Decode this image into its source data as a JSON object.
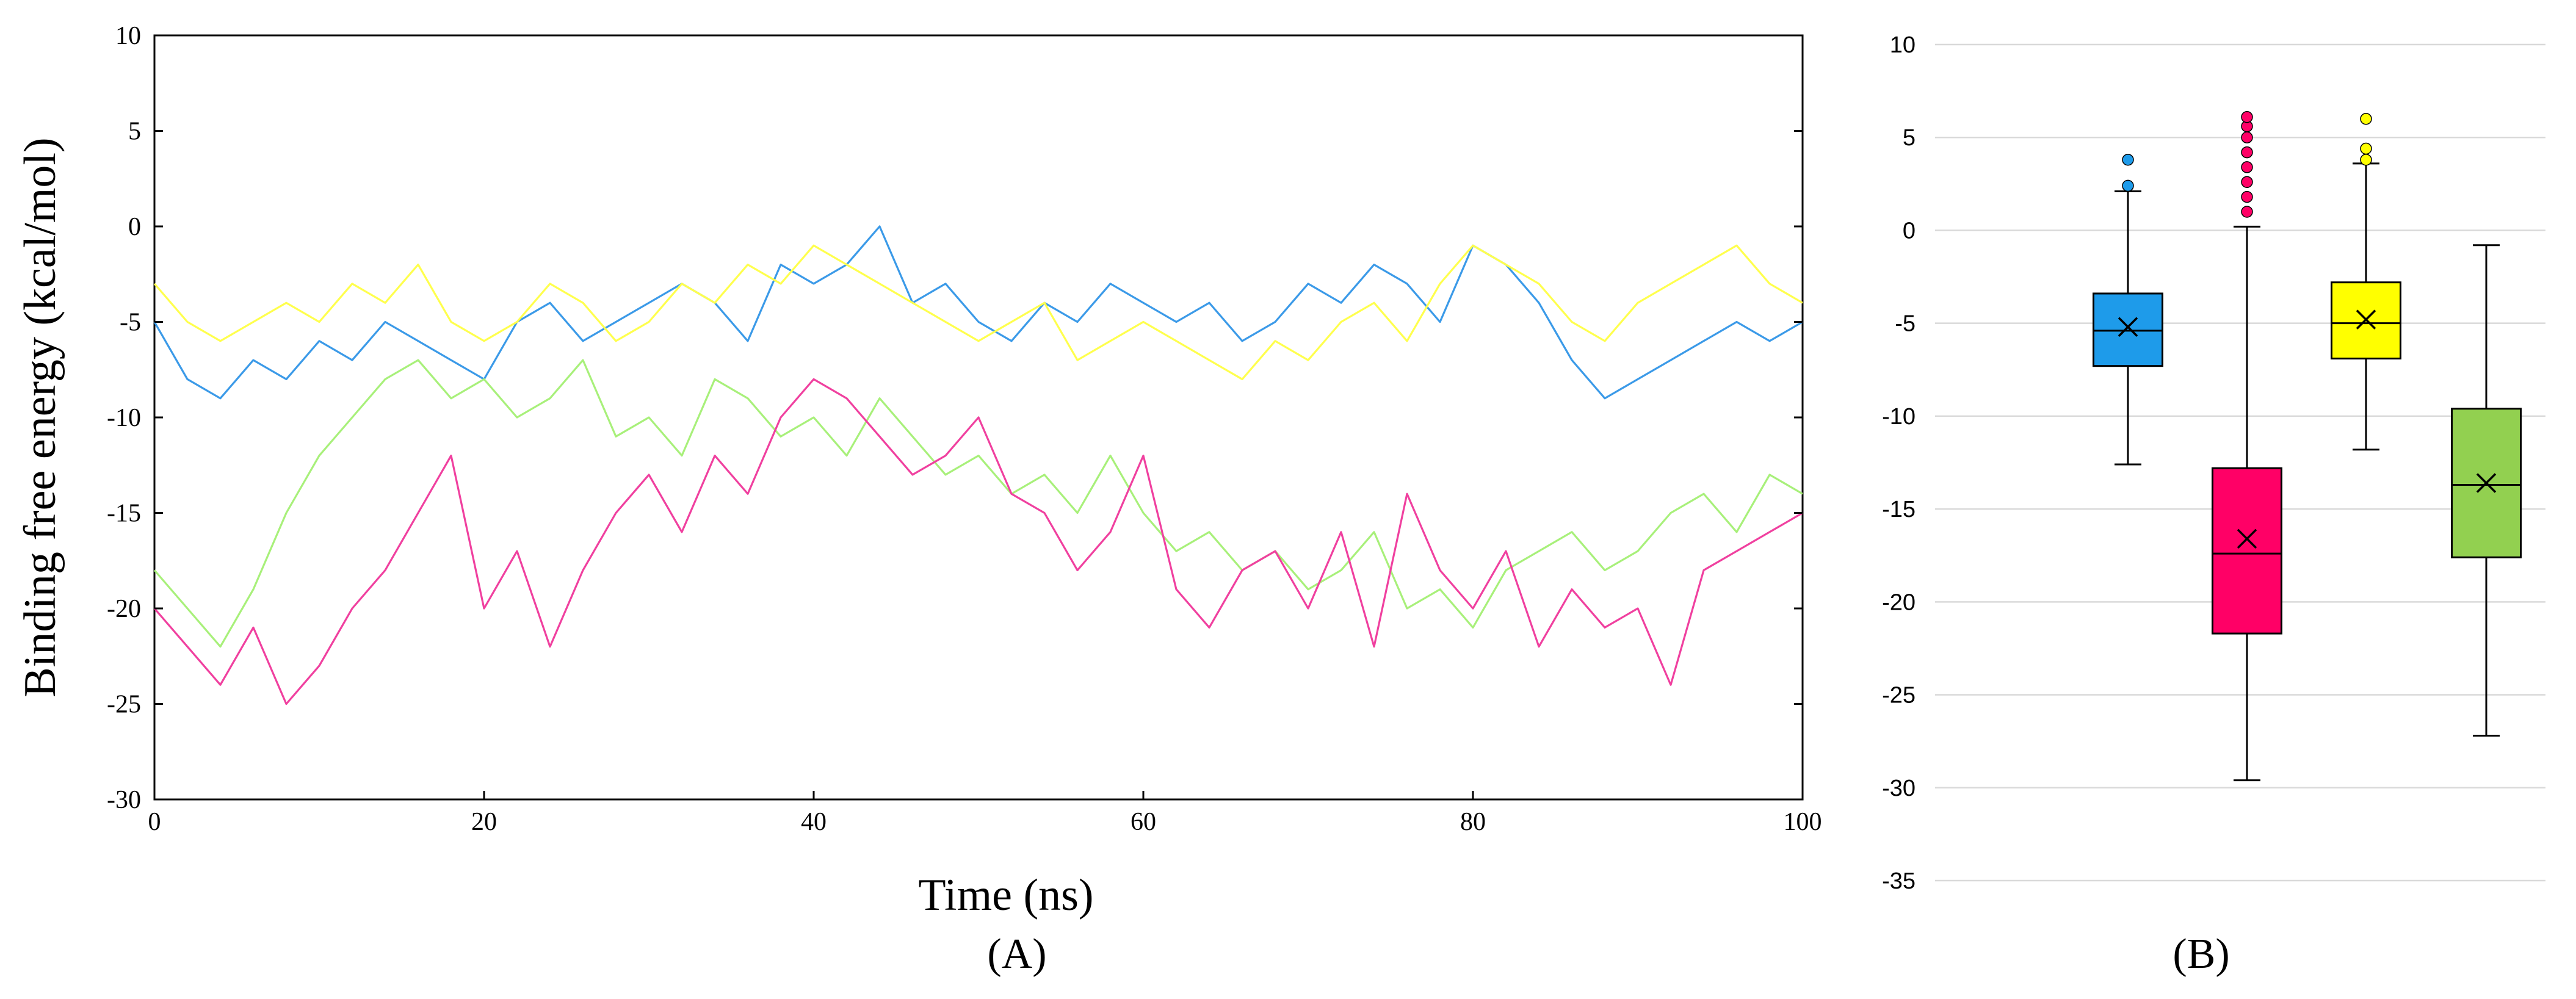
{
  "chart_data": [
    {
      "type": "line",
      "panel_label": "(A)",
      "xlabel": "Time (ns)",
      "ylabel": "Binding free energy (kcal/mol)",
      "xlim": [
        0,
        100
      ],
      "ylim": [
        -30,
        10
      ],
      "x_ticks": [
        "0",
        "20",
        "40",
        "60",
        "80",
        "100"
      ],
      "y_ticks": [
        "10",
        "5",
        "0",
        "-5",
        "-10",
        "-15",
        "-20",
        "-25",
        "-30"
      ],
      "grid": false,
      "legend": "none",
      "series": [
        {
          "color": "#3b9ae8",
          "x": [
            0,
            2,
            4,
            6,
            8,
            10,
            12,
            14,
            16,
            18,
            20,
            22,
            24,
            26,
            28,
            30,
            32,
            34,
            36,
            38,
            40,
            42,
            44,
            46,
            48,
            50,
            52,
            54,
            56,
            58,
            60,
            62,
            64,
            66,
            68,
            70,
            72,
            74,
            76,
            78,
            80,
            82,
            84,
            86,
            88,
            90,
            92,
            94,
            96,
            98,
            100
          ],
          "values": [
            -5,
            -8,
            -9,
            -7,
            -8,
            -6,
            -7,
            -5,
            -6,
            -7,
            -8,
            -5,
            -4,
            -6,
            -5,
            -4,
            -3,
            -4,
            -6,
            -2,
            -3,
            -2,
            0,
            -4,
            -3,
            -5,
            -6,
            -4,
            -5,
            -3,
            -4,
            -5,
            -4,
            -6,
            -5,
            -3,
            -4,
            -2,
            -3,
            -5,
            -1,
            -2,
            -4,
            -7,
            -9,
            -8,
            -7,
            -6,
            -5,
            -6,
            -5
          ]
        },
        {
          "color": "#ffff4d",
          "x": [
            0,
            2,
            4,
            6,
            8,
            10,
            12,
            14,
            16,
            18,
            20,
            22,
            24,
            26,
            28,
            30,
            32,
            34,
            36,
            38,
            40,
            42,
            44,
            46,
            48,
            50,
            52,
            54,
            56,
            58,
            60,
            62,
            64,
            66,
            68,
            70,
            72,
            74,
            76,
            78,
            80,
            82,
            84,
            86,
            88,
            90,
            92,
            94,
            96,
            98,
            100
          ],
          "values": [
            -3,
            -5,
            -6,
            -5,
            -4,
            -5,
            -3,
            -4,
            -2,
            -5,
            -6,
            -5,
            -3,
            -4,
            -6,
            -5,
            -3,
            -4,
            -2,
            -3,
            -1,
            -2,
            -3,
            -4,
            -5,
            -6,
            -5,
            -4,
            -7,
            -6,
            -5,
            -6,
            -7,
            -8,
            -6,
            -7,
            -5,
            -4,
            -6,
            -3,
            -1,
            -2,
            -3,
            -5,
            -6,
            -4,
            -3,
            -2,
            -1,
            -3,
            -4
          ]
        },
        {
          "color": "#a8f07a",
          "x": [
            0,
            2,
            4,
            6,
            8,
            10,
            12,
            14,
            16,
            18,
            20,
            22,
            24,
            26,
            28,
            30,
            32,
            34,
            36,
            38,
            40,
            42,
            44,
            46,
            48,
            50,
            52,
            54,
            56,
            58,
            60,
            62,
            64,
            66,
            68,
            70,
            72,
            74,
            76,
            78,
            80,
            82,
            84,
            86,
            88,
            90,
            92,
            94,
            96,
            98,
            100
          ],
          "values": [
            -18,
            -20,
            -22,
            -19,
            -15,
            -12,
            -10,
            -8,
            -7,
            -9,
            -8,
            -10,
            -9,
            -7,
            -11,
            -10,
            -12,
            -8,
            -9,
            -11,
            -10,
            -12,
            -9,
            -11,
            -13,
            -12,
            -14,
            -13,
            -15,
            -12,
            -15,
            -17,
            -16,
            -18,
            -17,
            -19,
            -18,
            -16,
            -20,
            -19,
            -21,
            -18,
            -17,
            -16,
            -18,
            -17,
            -15,
            -14,
            -16,
            -13,
            -14
          ]
        },
        {
          "color": "#f0409f",
          "x": [
            0,
            2,
            4,
            6,
            8,
            10,
            12,
            14,
            16,
            18,
            20,
            22,
            24,
            26,
            28,
            30,
            32,
            34,
            36,
            38,
            40,
            42,
            44,
            46,
            48,
            50,
            52,
            54,
            56,
            58,
            60,
            62,
            64,
            66,
            68,
            70,
            72,
            74,
            76,
            78,
            80,
            82,
            84,
            86,
            88,
            90,
            92,
            94,
            96,
            98,
            100
          ],
          "values": [
            -20,
            -22,
            -24,
            -21,
            -25,
            -23,
            -20,
            -18,
            -15,
            -12,
            -20,
            -17,
            -22,
            -18,
            -15,
            -13,
            -16,
            -12,
            -14,
            -10,
            -8,
            -9,
            -11,
            -13,
            -12,
            -10,
            -14,
            -15,
            -18,
            -16,
            -12,
            -19,
            -21,
            -18,
            -17,
            -20,
            -16,
            -22,
            -14,
            -18,
            -20,
            -17,
            -22,
            -19,
            -21,
            -20,
            -24,
            -18,
            -17,
            -16,
            -15
          ]
        }
      ]
    },
    {
      "type": "box",
      "panel_label": "(B)",
      "ylim": [
        -35,
        10
      ],
      "y_ticks": [
        "10",
        "5",
        "0",
        "-5",
        "-10",
        "-15",
        "-20",
        "-25",
        "-30",
        "-35"
      ],
      "grid": true,
      "legend": "none",
      "boxes": [
        {
          "color": "#1e9bea",
          "min": -12.6,
          "q1": -7.3,
          "median": -5.4,
          "mean": -5.2,
          "q3": -3.4,
          "max": 2.1,
          "outliers": [
            2.4,
            3.8
          ]
        },
        {
          "color": "#ff0066",
          "min": -29.6,
          "q1": -21.7,
          "median": -17.4,
          "mean": -16.6,
          "q3": -12.8,
          "max": 0.2,
          "outliers": [
            1.0,
            1.8,
            2.6,
            3.4,
            4.2,
            5.0,
            5.6,
            6.1
          ]
        },
        {
          "color": "#ffff00",
          "min": -11.8,
          "q1": -6.9,
          "median": -5.0,
          "mean": -4.8,
          "q3": -2.8,
          "max": 3.6,
          "outliers": [
            3.8,
            4.4,
            6.0
          ]
        },
        {
          "color": "#92d050",
          "min": -27.2,
          "q1": -17.6,
          "median": -13.7,
          "mean": -13.6,
          "q3": -9.6,
          "max": -0.8,
          "outliers": []
        }
      ]
    }
  ]
}
